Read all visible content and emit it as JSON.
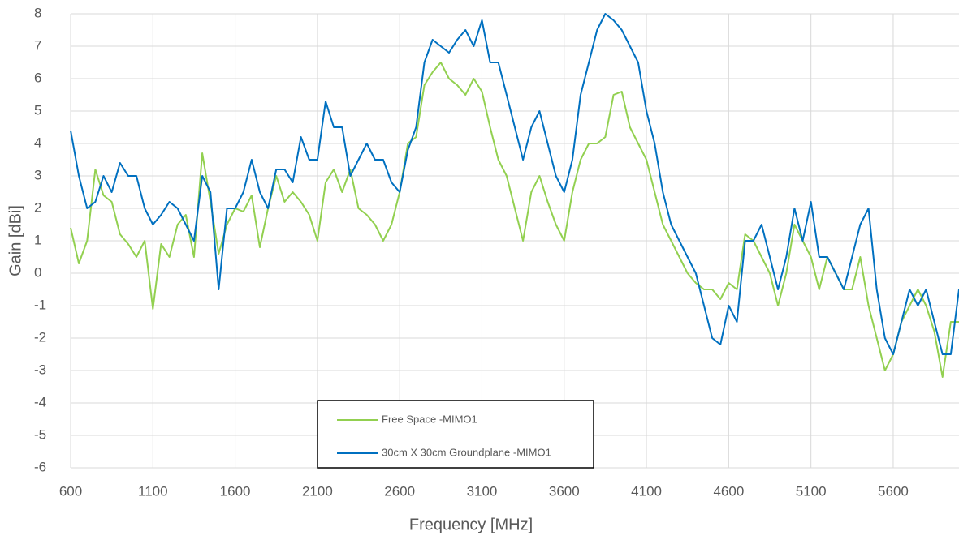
{
  "chart_data": {
    "type": "line",
    "xlabel": "Frequency [MHz]",
    "ylabel": "Gain [dBi]",
    "x": [
      600,
      650,
      700,
      750,
      800,
      850,
      900,
      950,
      1000,
      1050,
      1100,
      1150,
      1200,
      1250,
      1300,
      1350,
      1400,
      1450,
      1500,
      1550,
      1600,
      1650,
      1700,
      1750,
      1800,
      1850,
      1900,
      1950,
      2000,
      2050,
      2100,
      2150,
      2200,
      2250,
      2300,
      2350,
      2400,
      2450,
      2500,
      2550,
      2600,
      2650,
      2700,
      2750,
      2800,
      2850,
      2900,
      2950,
      3000,
      3050,
      3100,
      3150,
      3200,
      3250,
      3300,
      3350,
      3400,
      3450,
      3500,
      3550,
      3600,
      3650,
      3700,
      3750,
      3800,
      3850,
      3900,
      3950,
      4000,
      4050,
      4100,
      4150,
      4200,
      4250,
      4300,
      4350,
      4400,
      4450,
      4500,
      4550,
      4600,
      4650,
      4700,
      4750,
      4800,
      4850,
      4900,
      4950,
      5000,
      5050,
      5100,
      5150,
      5200,
      5250,
      5300,
      5350,
      5400,
      5450,
      5500,
      5550,
      5600,
      5650,
      5700,
      5750,
      5800,
      5850,
      5900,
      5950,
      6000
    ],
    "series": [
      {
        "name": "Free Space -MIMO1",
        "color": "#92d050",
        "values": [
          1.4,
          0.3,
          1.0,
          3.2,
          2.4,
          2.2,
          1.2,
          0.9,
          0.5,
          1.0,
          -1.1,
          0.9,
          0.5,
          1.5,
          1.8,
          0.5,
          3.7,
          2.2,
          0.6,
          1.5,
          2.0,
          1.9,
          2.4,
          0.8,
          2.0,
          3.0,
          2.2,
          2.5,
          2.2,
          1.8,
          1.0,
          2.8,
          3.2,
          2.5,
          3.2,
          2.0,
          1.8,
          1.5,
          1.0,
          1.5,
          2.5,
          4.0,
          4.2,
          5.8,
          6.2,
          6.5,
          6.0,
          5.8,
          5.5,
          6.0,
          5.6,
          4.5,
          3.5,
          3.0,
          2.0,
          1.0,
          2.5,
          3.0,
          2.2,
          1.5,
          1.0,
          2.5,
          3.5,
          4.0,
          4.0,
          4.2,
          5.5,
          5.6,
          4.5,
          4.0,
          3.5,
          2.5,
          1.5,
          1.0,
          0.5,
          0.0,
          -0.3,
          -0.5,
          -0.5,
          -0.8,
          -0.3,
          -0.5,
          1.2,
          1.0,
          0.5,
          0.0,
          -1.0,
          0.0,
          1.5,
          1.0,
          0.5,
          -0.5,
          0.5,
          0.0,
          -0.5,
          -0.5,
          0.5,
          -1.0,
          -2.0,
          -3.0,
          -2.5,
          -1.5,
          -1.0,
          -0.5,
          -1.0,
          -1.8,
          -3.2,
          -1.5,
          -1.5
        ]
      },
      {
        "name": "30cm X 30cm Groundplane -MIMO1",
        "color": "#0070c0",
        "values": [
          4.4,
          3.0,
          2.0,
          2.2,
          3.0,
          2.5,
          3.4,
          3.0,
          3.0,
          2.0,
          1.5,
          1.8,
          2.2,
          2.0,
          1.5,
          1.0,
          3.0,
          2.5,
          -0.5,
          2.0,
          2.0,
          2.5,
          3.5,
          2.5,
          2.0,
          3.2,
          3.2,
          2.8,
          4.2,
          3.5,
          3.5,
          5.3,
          4.5,
          4.5,
          3.0,
          3.5,
          4.0,
          3.5,
          3.5,
          2.8,
          2.5,
          3.8,
          4.5,
          6.5,
          7.2,
          7.0,
          6.8,
          7.2,
          7.5,
          7.0,
          7.8,
          6.5,
          6.5,
          5.5,
          4.5,
          3.5,
          4.5,
          5.0,
          4.0,
          3.0,
          2.5,
          3.5,
          5.5,
          6.5,
          7.5,
          8.0,
          7.8,
          7.5,
          7.0,
          6.5,
          5.0,
          4.0,
          2.5,
          1.5,
          1.0,
          0.5,
          0.0,
          -1.0,
          -2.0,
          -2.2,
          -1.0,
          -1.5,
          1.0,
          1.0,
          1.5,
          0.5,
          -0.5,
          0.5,
          2.0,
          1.0,
          2.2,
          0.5,
          0.5,
          0.0,
          -0.5,
          0.5,
          1.5,
          2.0,
          -0.5,
          -2.0,
          -2.5,
          -1.5,
          -0.5,
          -1.0,
          -0.5,
          -1.5,
          -2.5,
          -2.5,
          -0.5
        ]
      }
    ],
    "xlim": [
      600,
      6000
    ],
    "xticks": [
      600,
      1100,
      1600,
      2100,
      2600,
      3100,
      3600,
      4100,
      4600,
      5100,
      5600
    ],
    "ylim": [
      -6,
      8
    ],
    "yticks": [
      -6,
      -5,
      -4,
      -3,
      -2,
      -1,
      0,
      1,
      2,
      3,
      4,
      5,
      6,
      7,
      8
    ],
    "grid": true
  }
}
